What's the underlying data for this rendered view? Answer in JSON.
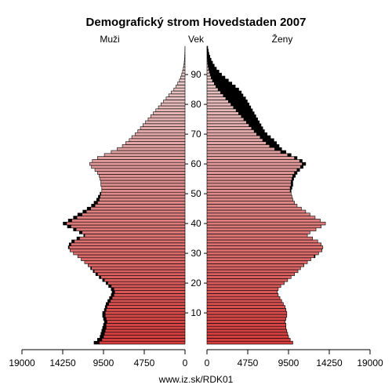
{
  "chart_data": {
    "type": "bar",
    "subtype": "population-pyramid",
    "title": "Demografický strom Hovedstaden 2007",
    "left_label": "Muži",
    "center_label": "Vek",
    "right_label": "Ženy",
    "footer": "www.iz.sk/RDK01",
    "x_ticks_left": [
      "19000",
      "14250",
      "9500",
      "4750",
      "0"
    ],
    "x_ticks_right": [
      "0",
      "4750",
      "9500",
      "14250",
      "19000"
    ],
    "x_tick_values": [
      19000,
      14250,
      9500,
      4750,
      0
    ],
    "xlim": [
      0,
      19000
    ],
    "age_ticks": [
      10,
      20,
      30,
      40,
      50,
      60,
      70,
      80,
      90
    ],
    "ages": [
      0,
      1,
      2,
      3,
      4,
      5,
      6,
      7,
      8,
      9,
      10,
      11,
      12,
      13,
      14,
      15,
      16,
      17,
      18,
      19,
      20,
      21,
      22,
      23,
      24,
      25,
      26,
      27,
      28,
      29,
      30,
      31,
      32,
      33,
      34,
      35,
      36,
      37,
      38,
      39,
      40,
      41,
      42,
      43,
      44,
      45,
      46,
      47,
      48,
      49,
      50,
      51,
      52,
      53,
      54,
      55,
      56,
      57,
      58,
      59,
      60,
      61,
      62,
      63,
      64,
      65,
      66,
      67,
      68,
      69,
      70,
      71,
      72,
      73,
      74,
      75,
      76,
      77,
      78,
      79,
      80,
      81,
      82,
      83,
      84,
      85,
      86,
      87,
      88,
      89,
      90,
      91,
      92,
      93,
      94,
      95,
      96,
      97,
      98,
      99
    ],
    "series": [
      {
        "name": "Muži",
        "values": [
          10600,
          10200,
          9900,
          9800,
          9700,
          9600,
          9500,
          9400,
          9500,
          9600,
          9600,
          9400,
          9300,
          9200,
          9000,
          8800,
          8600,
          8500,
          8600,
          8900,
          9200,
          9600,
          10000,
          10400,
          10700,
          11000,
          11300,
          11700,
          12100,
          12500,
          13000,
          13400,
          13600,
          13500,
          13200,
          12600,
          11800,
          12300,
          13000,
          13700,
          14200,
          13600,
          13000,
          12500,
          11900,
          11400,
          10900,
          10600,
          10300,
          10100,
          9900,
          9700,
          9700,
          9800,
          9800,
          9900,
          10000,
          10200,
          10500,
          10900,
          11100,
          10800,
          10200,
          9400,
          8600,
          7900,
          7300,
          6900,
          6500,
          6200,
          5800,
          5500,
          5200,
          4900,
          4600,
          4300,
          4000,
          3700,
          3400,
          3100,
          2800,
          2500,
          2200,
          1900,
          1600,
          1300,
          1050,
          850,
          650,
          500,
          380,
          280,
          200,
          140,
          95,
          60,
          40,
          25,
          15,
          8
        ]
      },
      {
        "name": "Ženy",
        "values": [
          10000,
          9700,
          9500,
          9400,
          9300,
          9200,
          9200,
          9100,
          9200,
          9300,
          9300,
          9200,
          9100,
          8900,
          8700,
          8500,
          8300,
          8200,
          8300,
          8600,
          9000,
          9400,
          9800,
          10200,
          10600,
          10900,
          11300,
          11700,
          12100,
          12600,
          13000,
          13400,
          13500,
          13300,
          12900,
          12300,
          11700,
          12000,
          12700,
          13300,
          13800,
          13200,
          12600,
          12000,
          11500,
          11000,
          10500,
          10200,
          10000,
          9900,
          9800,
          9800,
          9900,
          10000,
          10000,
          10100,
          10300,
          10500,
          10800,
          11200,
          11500,
          11100,
          10500,
          9800,
          9200,
          8700,
          8400,
          8100,
          7800,
          7400,
          7000,
          6700,
          6500,
          6300,
          6100,
          5900,
          5700,
          5500,
          5300,
          5100,
          4900,
          4700,
          4500,
          4200,
          4000,
          3700,
          3300,
          2900,
          2500,
          2100,
          1700,
          1400,
          1100,
          850,
          650,
          480,
          340,
          230,
          150,
          90
        ]
      }
    ],
    "colors": {
      "bar_outline": "#000000",
      "bar_young": "#d43c3c",
      "bar_old": "#e8d0d0",
      "excess": "#000000",
      "background": "#ffffff"
    }
  }
}
